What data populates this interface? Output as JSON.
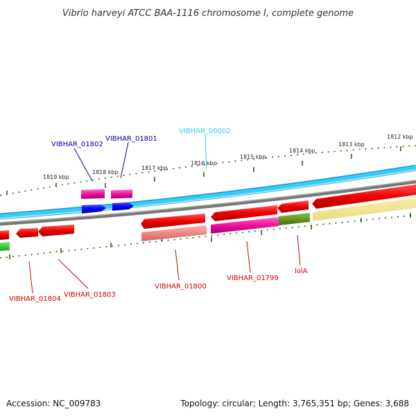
{
  "title": "Vibrio harveyi ATCC BAA-1116 chromosome I, complete genome",
  "footer": {
    "accession": "Accession: NC_009783",
    "topology": "Topology: circular; Length: 3,765,351 bp; Genes: 3,688"
  },
  "scale": {
    "ticks": [
      "1819 kbp",
      "1818 kbp",
      "1817 kbp",
      "1816 kbp",
      "1815 kbp",
      "1814 kbp",
      "1813 kbp",
      "1812 kbp"
    ]
  },
  "genes": {
    "labels": [
      {
        "id": "VIBHAR_01802",
        "text": "VIBHAR_01802",
        "color": "#0000aa"
      },
      {
        "id": "VIBHAR_01801",
        "text": "VIBHAR_01801",
        "color": "#0000aa"
      },
      {
        "id": "VIBHAR_00002",
        "text": "VIBHAR_00002",
        "color": "#33ccee"
      },
      {
        "id": "VIBHAR_01804",
        "text": "VIBHAR_01804",
        "color": "#cc0000"
      },
      {
        "id": "VIBHAR_01803",
        "text": "VIBHAR_01803",
        "color": "#cc0000"
      },
      {
        "id": "VIBHAR_01800",
        "text": "VIBHAR_01800",
        "color": "#cc0000"
      },
      {
        "id": "VIBHAR_01799",
        "text": "VIBHAR_01799",
        "color": "#cc0000"
      },
      {
        "id": "lolA",
        "text": "lolA",
        "color": "#cc0000"
      }
    ]
  },
  "colors": {
    "cds_forward": "#ee0000",
    "cds_blue": "#0000ee",
    "track_cyan": "#33ccff",
    "track_cyan_edge": "#2299bb",
    "track_gray": "#888888",
    "magenta": "#ee1199",
    "salmon": "#ee8888",
    "olive": "#669922",
    "khaki": "#f0e68c",
    "green_cds": "#33cc33",
    "tick_green": "#226600"
  }
}
